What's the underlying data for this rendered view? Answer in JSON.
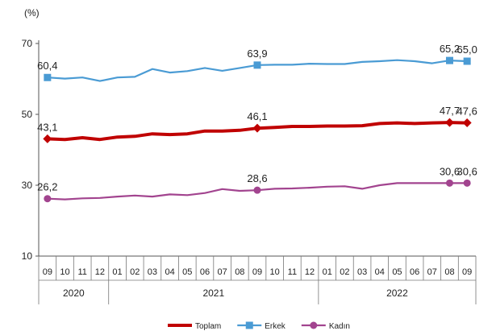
{
  "chart_data": {
    "type": "line",
    "unit_label": "(%)",
    "ylim": [
      10,
      70
    ],
    "yticks": [
      10,
      30,
      50,
      70
    ],
    "grid": false,
    "legend_position": "bottom-center",
    "categories": [
      "09",
      "10",
      "11",
      "12",
      "01",
      "02",
      "03",
      "04",
      "05",
      "06",
      "07",
      "08",
      "09",
      "10",
      "11",
      "12",
      "01",
      "02",
      "03",
      "04",
      "05",
      "06",
      "07",
      "08",
      "09"
    ],
    "years": [
      {
        "label": "2020",
        "from": 0,
        "to": 3
      },
      {
        "label": "2021",
        "from": 4,
        "to": 15
      },
      {
        "label": "2022",
        "from": 16,
        "to": 24
      }
    ],
    "series": [
      {
        "name": "Toplam",
        "color": "#c00000",
        "marker": "diamond",
        "values": [
          43.1,
          42.9,
          43.4,
          42.9,
          43.6,
          43.8,
          44.5,
          44.3,
          44.5,
          45.3,
          45.3,
          45.5,
          46.1,
          46.3,
          46.6,
          46.6,
          46.7,
          46.7,
          46.8,
          47.4,
          47.6,
          47.4,
          47.6,
          47.7,
          47.6
        ],
        "labels": [
          {
            "index": 0,
            "text": "43,1"
          },
          {
            "index": 12,
            "text": "46,1"
          },
          {
            "index": 23,
            "text": "47,7"
          },
          {
            "index": 24,
            "text": "47,6"
          }
        ]
      },
      {
        "name": "Erkek",
        "color": "#4a9bd4",
        "marker": "square",
        "values": [
          60.4,
          60.1,
          60.4,
          59.4,
          60.4,
          60.6,
          62.8,
          61.8,
          62.2,
          63.1,
          62.3,
          63.1,
          63.9,
          64.0,
          64.0,
          64.3,
          64.2,
          64.2,
          64.8,
          65.0,
          65.3,
          65.0,
          64.4,
          65.2,
          65.0
        ],
        "labels": [
          {
            "index": 0,
            "text": "60,4"
          },
          {
            "index": 12,
            "text": "63,9"
          },
          {
            "index": 23,
            "text": "65,2"
          },
          {
            "index": 24,
            "text": "65,0"
          }
        ]
      },
      {
        "name": "Kadın",
        "color": "#a2448f",
        "marker": "circle",
        "values": [
          26.2,
          26.0,
          26.3,
          26.4,
          26.8,
          27.1,
          26.8,
          27.4,
          27.2,
          27.8,
          28.9,
          28.4,
          28.6,
          29.0,
          29.1,
          29.3,
          29.6,
          29.7,
          29.0,
          30.0,
          30.6,
          30.6,
          30.6,
          30.6,
          30.6
        ],
        "labels": [
          {
            "index": 0,
            "text": "26,2"
          },
          {
            "index": 12,
            "text": "28,6"
          },
          {
            "index": 23,
            "text": "30,6"
          },
          {
            "index": 24,
            "text": "30,6"
          }
        ]
      }
    ]
  }
}
